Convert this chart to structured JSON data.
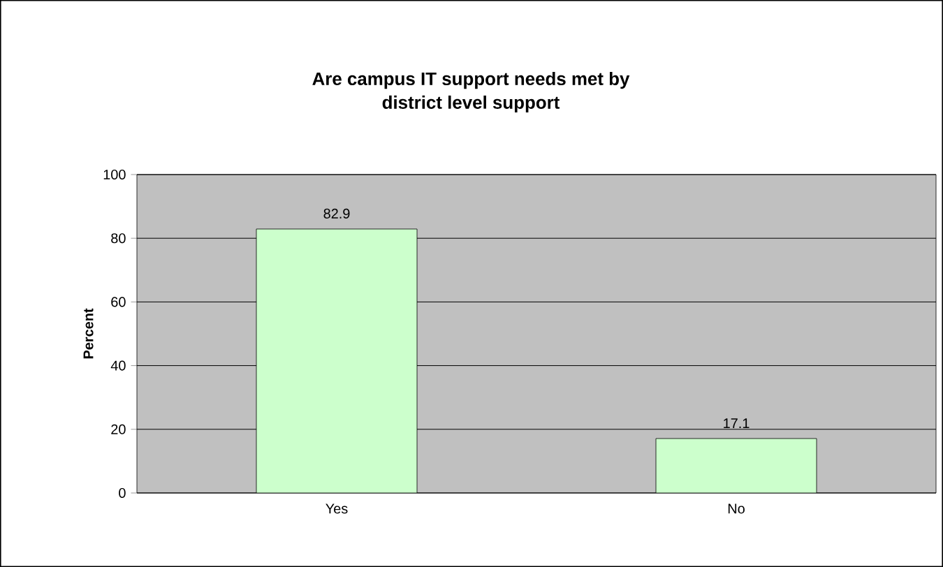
{
  "chart_data": {
    "type": "bar",
    "title": "Are campus IT support needs met by\ndistrict level support",
    "ylabel": "Percent",
    "categories": [
      "Yes",
      "No"
    ],
    "values": [
      82.9,
      17.1
    ],
    "color": "#ccffcc",
    "ylim": [
      0,
      100
    ],
    "yticks": [
      0,
      20,
      40,
      60,
      80,
      100
    ],
    "grid": "y",
    "data_labels": true
  }
}
